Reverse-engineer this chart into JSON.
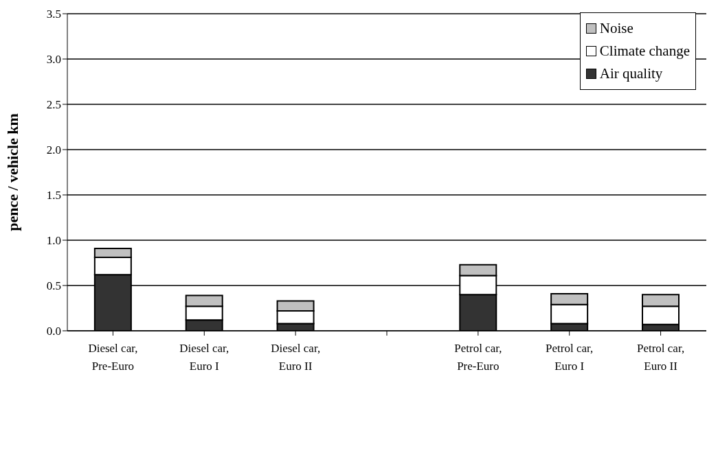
{
  "chart_data": {
    "type": "bar",
    "stacked": true,
    "ylabel": "pence / vehicle km",
    "categories": [
      "Diesel car, Pre-Euro",
      "Diesel car, Euro I",
      "Diesel car, Euro II",
      null,
      "Petrol car, Pre-Euro",
      "Petrol car, Euro I",
      "Petrol car, Euro II"
    ],
    "series": [
      {
        "name": "Air quality",
        "color": "#333333",
        "values": [
          0.62,
          0.12,
          0.08,
          null,
          0.4,
          0.08,
          0.07
        ]
      },
      {
        "name": "Climate change",
        "color": "#ffffff",
        "values": [
          0.19,
          0.15,
          0.14,
          null,
          0.21,
          0.21,
          0.2
        ]
      },
      {
        "name": "Noise",
        "color": "#c0c0c0",
        "values": [
          0.1,
          0.12,
          0.11,
          null,
          0.12,
          0.12,
          0.13
        ]
      }
    ],
    "ylim": [
      0,
      3.5
    ],
    "yticks": [
      {
        "value": 0,
        "label": "0.0"
      },
      0.5,
      {
        "value": 1,
        "label": "1.0"
      },
      1.5,
      {
        "value": 2,
        "label": "2.0"
      },
      2.5,
      {
        "value": 3,
        "label": "3.0"
      },
      3.5
    ],
    "grid": "y",
    "legend": "top right"
  }
}
